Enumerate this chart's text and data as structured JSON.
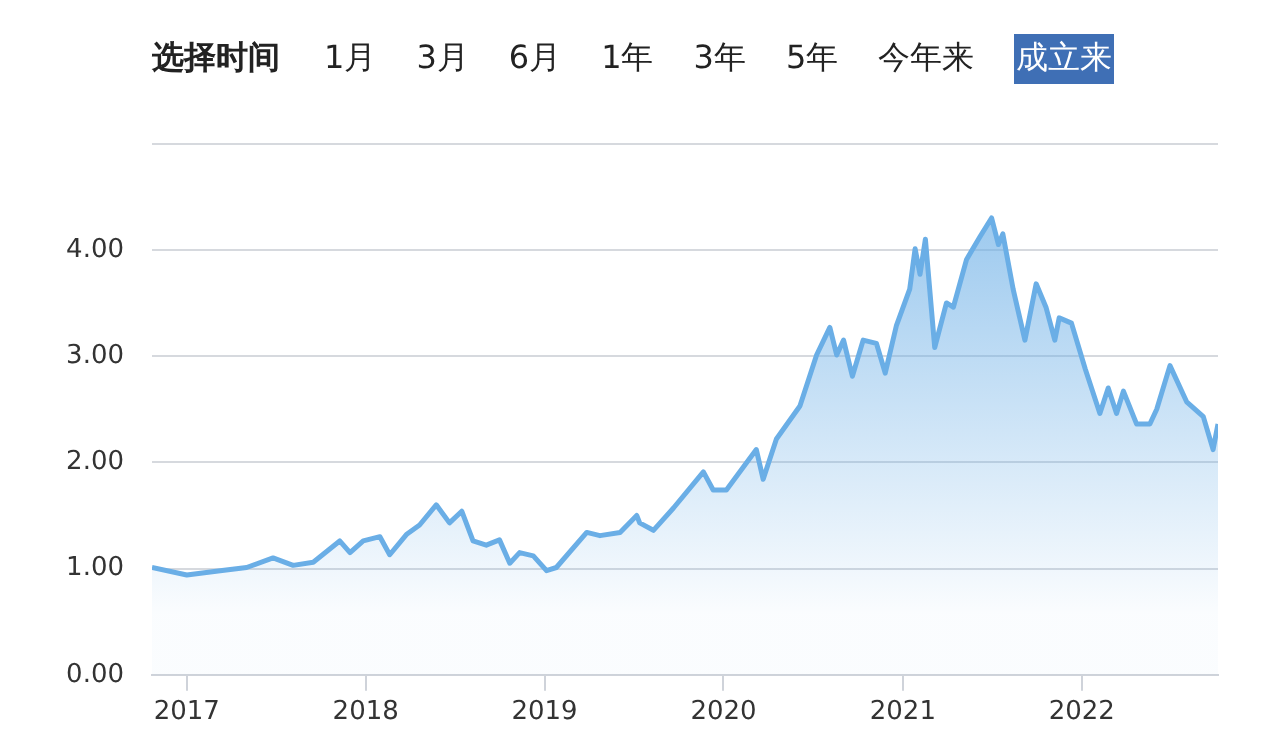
{
  "chart_data": {
    "type": "area",
    "annotations": [
      "选择时间",
      "1月",
      "3月",
      "6月",
      "1年",
      "3年",
      "5年",
      "今年来",
      "成立来"
    ],
    "x": [
      "2016-10-22",
      "2017-01-01",
      "2017-03-10",
      "2017-05-03",
      "2017-06-26",
      "2017-08-06",
      "2017-09-16",
      "2017-11-09",
      "2017-11-30",
      "2017-12-27",
      "2018-01-30",
      "2018-02-19",
      "2018-03-25",
      "2018-04-21",
      "2018-05-25",
      "2018-06-21",
      "2018-07-16",
      "2018-08-08",
      "2018-09-04",
      "2018-10-01",
      "2018-10-22",
      "2018-11-11",
      "2018-12-09",
      "2019-01-05",
      "2019-01-25",
      "2019-03-28",
      "2019-04-24",
      "2019-06-04",
      "2019-07-08",
      "2019-07-14",
      "2019-08-11",
      "2019-09-21",
      "2019-11-21",
      "2019-12-11",
      "2020-01-07",
      "2020-03-08",
      "2020-03-22",
      "2020-04-18",
      "2020-06-05",
      "2020-07-09",
      "2020-08-05",
      "2020-08-19",
      "2020-09-02",
      "2020-09-20",
      "2020-10-12",
      "2020-11-08",
      "2020-11-26",
      "2020-12-19",
      "2021-01-15",
      "2021-01-26",
      "2021-02-05",
      "2021-02-16",
      "2021-03-07",
      "2021-03-31",
      "2021-04-14",
      "2021-05-11",
      "2021-06-07",
      "2021-07-01",
      "2021-07-15",
      "2021-07-24",
      "2021-08-14",
      "2021-09-07",
      "2021-09-30",
      "2021-10-20",
      "2021-11-07",
      "2021-11-16",
      "2021-12-11",
      "2022-01-08",
      "2022-02-07",
      "2022-02-24",
      "2022-03-13",
      "2022-03-27",
      "2022-04-23",
      "2022-05-20",
      "2022-06-03",
      "2022-06-30",
      "2022-08-03",
      "2022-09-06",
      "2022-09-26",
      "2022-10-06"
    ],
    "series": [
      {
        "color": "#6aaee6",
        "values": [
          1.01,
          0.94,
          0.98,
          1.01,
          1.1,
          1.03,
          1.06,
          1.26,
          1.15,
          1.26,
          1.3,
          1.13,
          1.32,
          1.41,
          1.6,
          1.43,
          1.54,
          1.26,
          1.22,
          1.27,
          1.05,
          1.15,
          1.12,
          0.98,
          1.01,
          1.34,
          1.31,
          1.34,
          1.5,
          1.43,
          1.36,
          1.57,
          1.91,
          1.74,
          1.74,
          2.12,
          1.84,
          2.22,
          2.53,
          3.01,
          3.27,
          3.01,
          3.15,
          2.81,
          3.15,
          3.12,
          2.84,
          3.29,
          3.63,
          4.01,
          3.77,
          4.1,
          3.08,
          3.5,
          3.46,
          3.91,
          4.12,
          4.3,
          4.05,
          4.15,
          3.63,
          3.15,
          3.68,
          3.46,
          3.15,
          3.36,
          3.31,
          2.88,
          2.46,
          2.7,
          2.46,
          2.67,
          2.36,
          2.36,
          2.5,
          2.91,
          2.57,
          2.43,
          2.12,
          2.36
        ]
      }
    ],
    "xlim": [
      "2016-10-22",
      "2022-10-06"
    ],
    "xticks": [
      "2017",
      "2018",
      "2019",
      "2020",
      "2021",
      "2022"
    ],
    "ylim": [
      0,
      5
    ],
    "yticks": [
      {
        "value": 0,
        "label": "0.00"
      },
      {
        "value": 1,
        "label": "1.00"
      },
      {
        "value": 2,
        "label": "2.00"
      },
      {
        "value": 3,
        "label": "3.00"
      },
      {
        "value": 4,
        "label": "4.00"
      },
      {
        "value": 5,
        "label": null
      }
    ],
    "grid": "y",
    "legend": false,
    "marker": "none",
    "line_style": "solid"
  }
}
